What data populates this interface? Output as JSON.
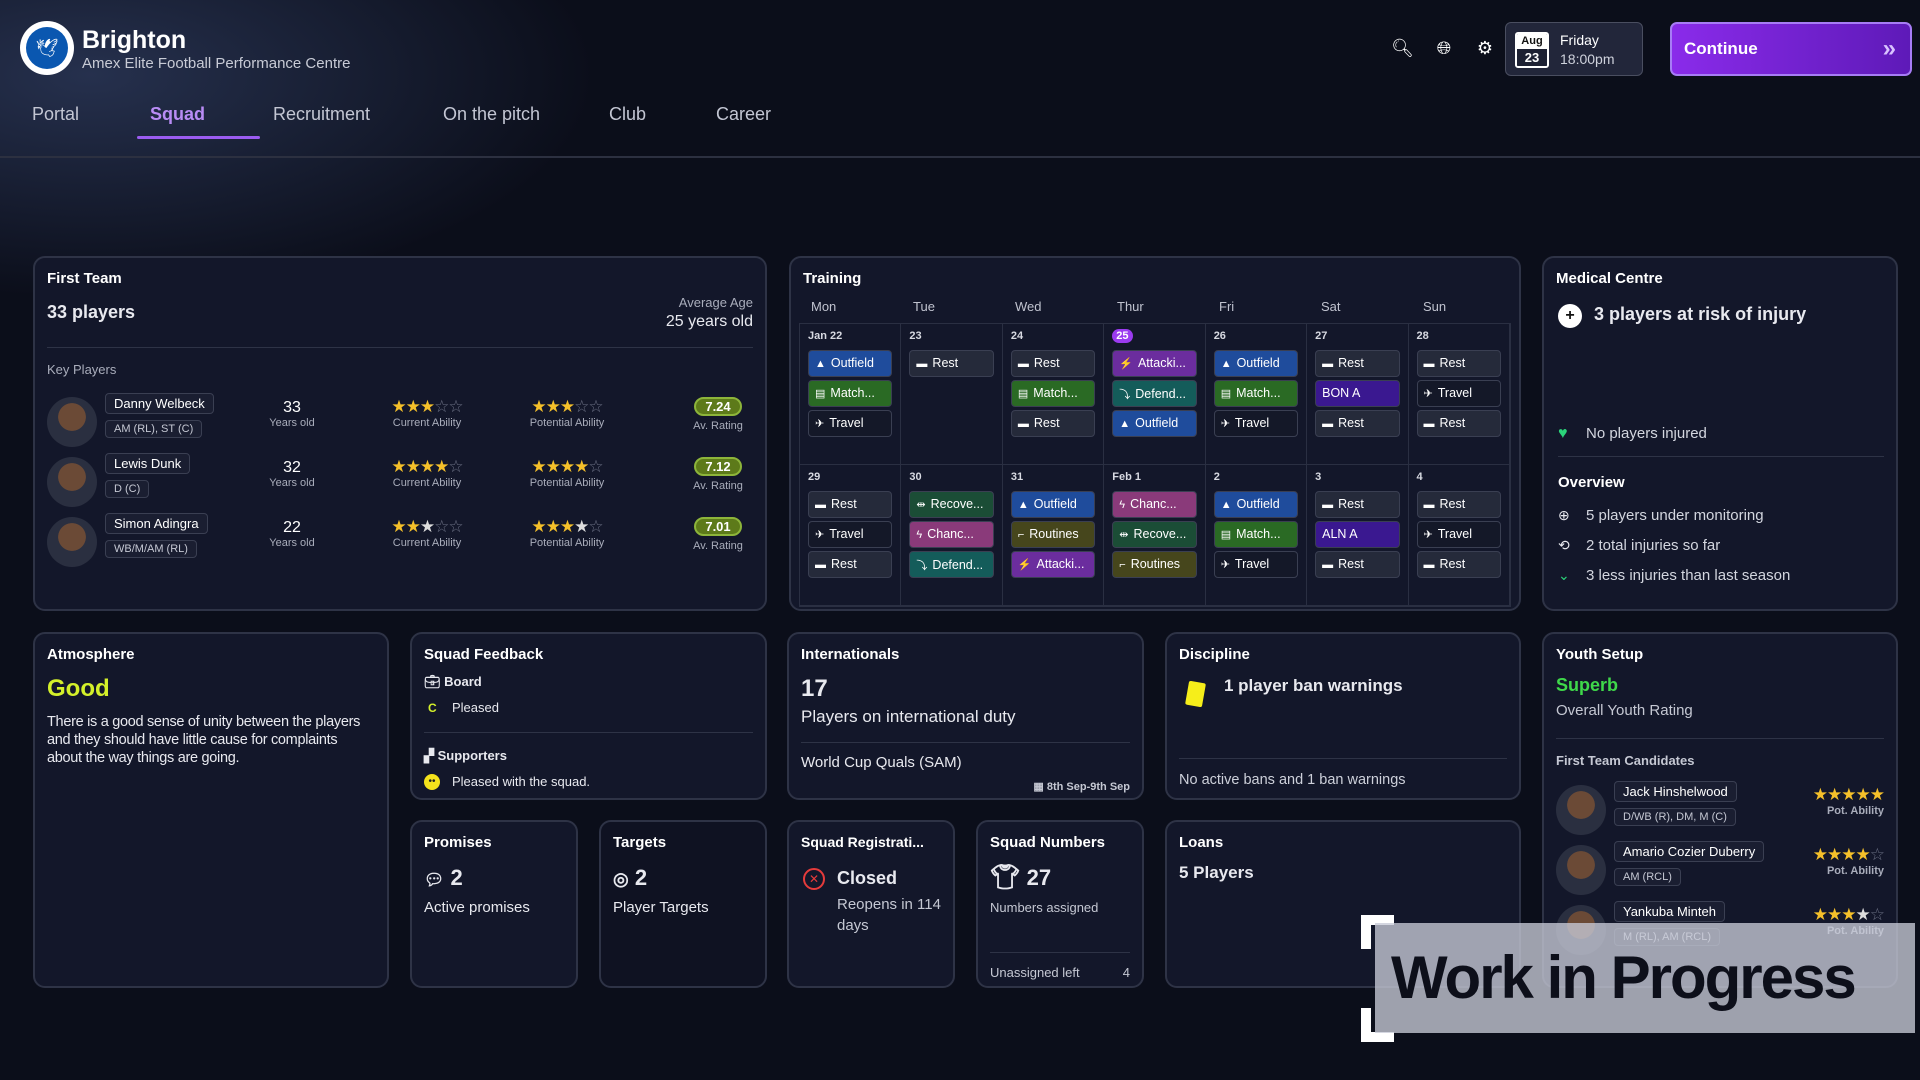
{
  "header": {
    "club": "Brighton",
    "subtitle": "Amex Elite Football Performance Centre",
    "date_month": "Aug",
    "date_day": "23",
    "weekday": "Friday",
    "time": "18:00pm",
    "continue": "Continue"
  },
  "nav": [
    "Portal",
    "Squad",
    "Recruitment",
    "On the pitch",
    "Club",
    "Career"
  ],
  "icons": [
    "search-icon",
    "globe-icon",
    "gear-icon"
  ],
  "first_team": {
    "title": "First Team",
    "count": "33 players",
    "avg_age_label": "Average Age",
    "avg_age": "25 years old",
    "key_players_label": "Key Players",
    "age_label": "Years old",
    "ca_label": "Current Ability",
    "pa_label": "Potential Ability",
    "rating_label": "Av. Rating",
    "players": [
      {
        "name": "Danny Welbeck",
        "pos": "AM (RL), ST (C)",
        "age": "33",
        "ca": 3,
        "pa": 3,
        "rating": "7.24"
      },
      {
        "name": "Lewis Dunk",
        "pos": "D (C)",
        "age": "32",
        "ca": 4,
        "pa": 4,
        "rating": "7.12"
      },
      {
        "name": "Simon Adingra",
        "pos": "WB/M/AM (RL)",
        "age": "22",
        "ca": 2.5,
        "pa": 3.5,
        "rating": "7.01"
      }
    ]
  },
  "training": {
    "title": "Training",
    "days": [
      "Mon",
      "Tue",
      "Wed",
      "Thur",
      "Fri",
      "Sat",
      "Sun"
    ],
    "weeks": [
      [
        {
          "date": "Jan 22",
          "events": [
            [
              "Outfield",
              "outfield"
            ],
            [
              "Match...",
              "match"
            ],
            [
              "Travel",
              "travel"
            ]
          ]
        },
        {
          "date": "23",
          "events": [
            [
              "Rest",
              "rest"
            ]
          ]
        },
        {
          "date": "24",
          "events": [
            [
              "Rest",
              "rest"
            ],
            [
              "Match...",
              "match"
            ],
            [
              "Rest",
              "rest"
            ]
          ]
        },
        {
          "date": "25",
          "today": true,
          "events": [
            [
              "Attacki...",
              "attacking"
            ],
            [
              "Defend...",
              "defending"
            ],
            [
              "Outfield",
              "outfield"
            ]
          ]
        },
        {
          "date": "26",
          "events": [
            [
              "Outfield",
              "outfield"
            ],
            [
              "Match...",
              "match"
            ],
            [
              "Travel",
              "travel"
            ]
          ]
        },
        {
          "date": "27",
          "events": [
            [
              "Rest",
              "rest"
            ],
            [
              "BON A",
              "fixture"
            ],
            [
              "Rest",
              "rest"
            ]
          ]
        },
        {
          "date": "28",
          "events": [
            [
              "Rest",
              "rest"
            ],
            [
              "Travel",
              "travel"
            ],
            [
              "Rest",
              "rest"
            ]
          ]
        }
      ],
      [
        {
          "date": "29",
          "events": [
            [
              "Rest",
              "rest"
            ],
            [
              "Travel",
              "travel"
            ],
            [
              "Rest",
              "rest"
            ]
          ]
        },
        {
          "date": "30",
          "events": [
            [
              "Recove...",
              "recovery"
            ],
            [
              "Chanc...",
              "chance"
            ],
            [
              "Defend...",
              "defending"
            ]
          ]
        },
        {
          "date": "31",
          "events": [
            [
              "Outfield",
              "outfield"
            ],
            [
              "Routines",
              "routines"
            ],
            [
              "Attacki...",
              "attacking"
            ]
          ]
        },
        {
          "date": "Feb 1",
          "events": [
            [
              "Chanc...",
              "chance"
            ],
            [
              "Recove...",
              "recovery"
            ],
            [
              "Routines",
              "routines"
            ]
          ]
        },
        {
          "date": "2",
          "events": [
            [
              "Outfield",
              "outfield"
            ],
            [
              "Match...",
              "match"
            ],
            [
              "Travel",
              "travel"
            ]
          ]
        },
        {
          "date": "3",
          "events": [
            [
              "Rest",
              "rest"
            ],
            [
              "ALN A",
              "fixture"
            ],
            [
              "Rest",
              "rest"
            ]
          ]
        },
        {
          "date": "4",
          "events": [
            [
              "Rest",
              "rest"
            ],
            [
              "Travel",
              "travel"
            ],
            [
              "Rest",
              "rest"
            ]
          ]
        }
      ]
    ],
    "colors": {
      "outfield": "#1f4c9c",
      "match": "#2a6a24",
      "travel": "#141828",
      "rest": "#252a3a",
      "attacking": "#6b2d9e",
      "defending": "#145c5a",
      "recovery": "#1b4d36",
      "chance": "#8a3a7a",
      "routines": "#46461c",
      "fixture": "#3a1890"
    },
    "icons": {
      "outfield": "▲",
      "match": "▤",
      "travel": "✈",
      "rest": "▬",
      "attacking": "⚡",
      "defending": "⤵",
      "recovery": "⇹",
      "chance": "ϟ",
      "routines": "⌐",
      "fixture": ""
    }
  },
  "medical": {
    "title": "Medical Centre",
    "risk": "3 players at risk of injury",
    "injured": "No players injured",
    "overview_label": "Overview",
    "items": [
      "5 players under monitoring",
      "2 total injuries so far",
      "3 less injuries than last season"
    ]
  },
  "atmosphere": {
    "title": "Atmosphere",
    "rating": "Good",
    "text": "There is a good sense of unity between the players and they should have little cause for complaints about the way things are going."
  },
  "feedback": {
    "title": "Squad Feedback",
    "board_label": "Board",
    "board_grade": "C",
    "board_text": "Pleased",
    "supporters_label": "Supporters",
    "supporters_text": "Pleased with the squad."
  },
  "internationals": {
    "title": "Internationals",
    "count": "17",
    "label": "Players on international duty",
    "competition": "World Cup Quals (SAM)",
    "dates": "8th Sep-9th Sep"
  },
  "discipline": {
    "title": "Discipline",
    "warnings": "1 player ban warnings",
    "summary": "No active bans and 1 ban warnings"
  },
  "youth": {
    "title": "Youth Setup",
    "rating": "Superb",
    "rating_label": "Overall Youth Rating",
    "candidates_label": "First Team Candidates",
    "pa_label": "Pot. Ability",
    "candidates": [
      {
        "name": "Jack Hinshelwood",
        "pos": "D/WB (R), DM, M (C)",
        "pa": 5
      },
      {
        "name": "Amario Cozier Duberry",
        "pos": "AM (RCL)",
        "pa": 4
      },
      {
        "name": "Yankuba Minteh",
        "pos": "M (RL), AM (RCL)",
        "pa": 3.5
      }
    ]
  },
  "promises": {
    "title": "Promises",
    "count": "2",
    "label": "Active promises"
  },
  "targets": {
    "title": "Targets",
    "count": "2",
    "label": "Player Targets"
  },
  "registration": {
    "title": "Squad Registrati...",
    "status": "Closed",
    "reopens": "Reopens in 114 days"
  },
  "numbers": {
    "title": "Squad Numbers",
    "count": "27",
    "label": "Numbers assigned",
    "unassigned_label": "Unassigned left",
    "unassigned": "4"
  },
  "loans": {
    "title": "Loans",
    "count": "5 Players"
  },
  "watermark": "Work in Progress",
  "colors": {
    "accent": "#9b5cf0",
    "good": "#d4f02a",
    "superb": "#3fd84a",
    "rating": "#5d7a1a"
  }
}
